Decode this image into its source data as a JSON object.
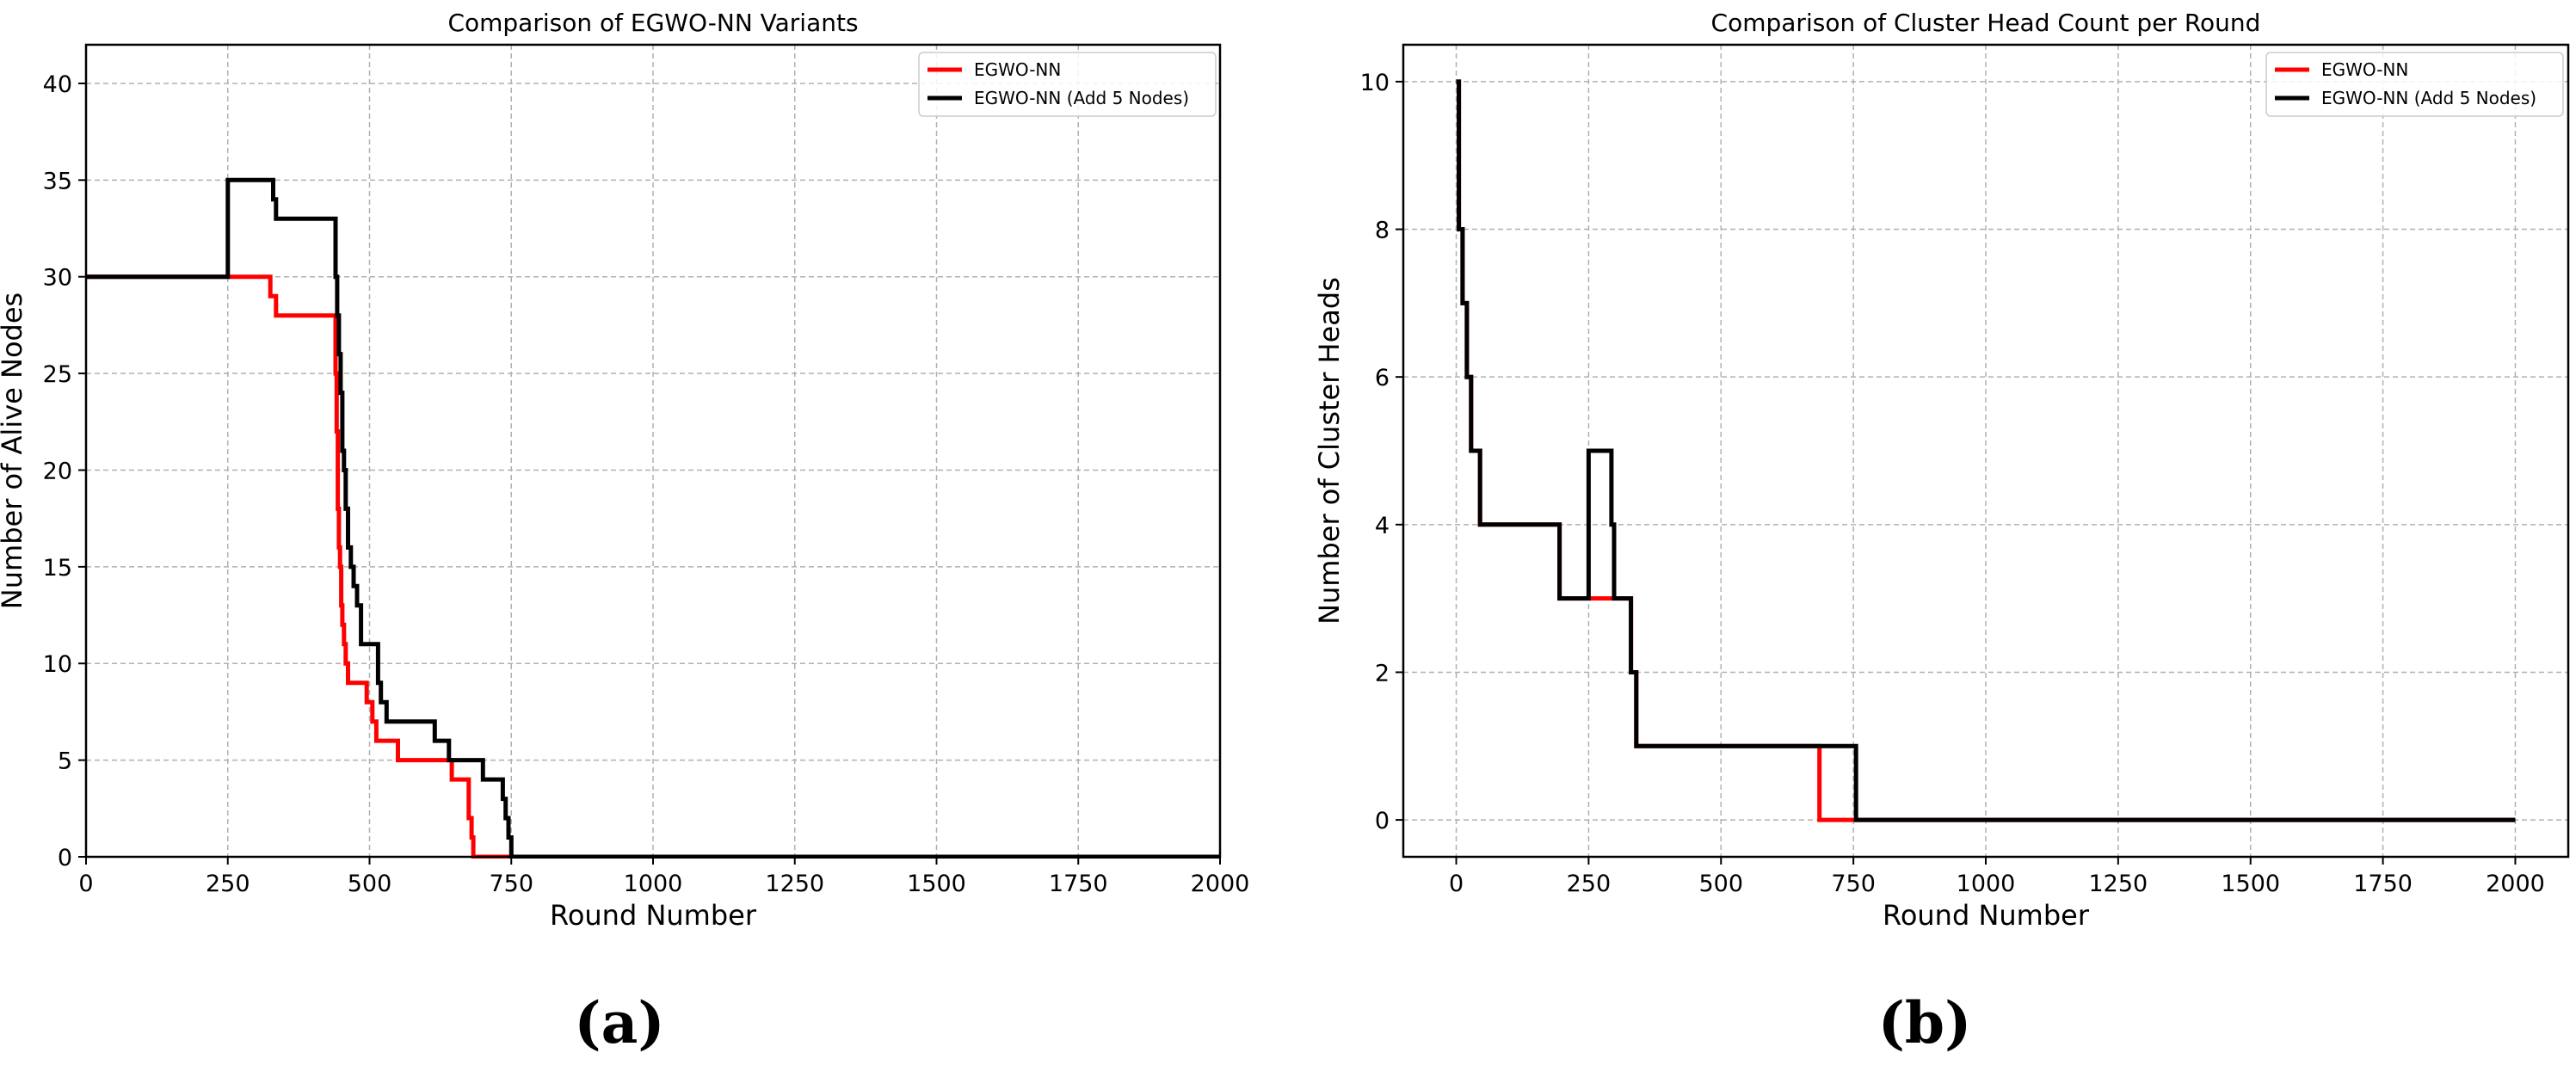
{
  "chart_data": [
    {
      "type": "line",
      "title": "Comparison of EGWO-NN Variants",
      "xlabel": "Round Number",
      "ylabel": "Number of Alive Nodes",
      "xlim": [
        0,
        2000
      ],
      "ylim": [
        0,
        42
      ],
      "xticks": [
        0,
        250,
        500,
        750,
        1000,
        1250,
        1500,
        1750,
        2000
      ],
      "yticks": [
        0,
        5,
        10,
        15,
        20,
        25,
        30,
        35,
        40
      ],
      "grid": true,
      "legend_position": "top-right",
      "panel_label": "(a)",
      "series": [
        {
          "name": "EGWO-NN",
          "color": "#ff0000",
          "x": [
            0,
            325,
            325,
            335,
            335,
            345,
            345,
            440,
            440,
            442,
            442,
            444,
            444,
            446,
            446,
            448,
            448,
            450,
            450,
            452,
            452,
            455,
            455,
            458,
            458,
            462,
            462,
            470,
            470,
            495,
            495,
            505,
            505,
            512,
            512,
            520,
            520,
            550,
            550,
            645,
            645,
            675,
            675,
            680,
            680,
            683,
            683,
            686,
            686,
            2000
          ],
          "y": [
            30,
            30,
            29,
            29,
            28,
            28,
            28,
            28,
            25,
            25,
            22,
            22,
            18,
            18,
            16,
            16,
            15,
            15,
            13,
            13,
            12,
            12,
            11,
            11,
            10,
            10,
            9,
            9,
            9,
            9,
            8,
            8,
            7,
            7,
            6,
            6,
            6,
            6,
            5,
            5,
            4,
            4,
            2,
            2,
            1,
            1,
            0,
            0,
            0,
            0
          ]
        },
        {
          "name": "EGWO-NN (Add 5 Nodes)",
          "color": "#000000",
          "x": [
            0,
            250,
            250,
            330,
            330,
            335,
            335,
            345,
            345,
            440,
            440,
            443,
            443,
            446,
            446,
            449,
            449,
            452,
            452,
            455,
            455,
            458,
            458,
            462,
            462,
            467,
            467,
            472,
            472,
            478,
            478,
            485,
            485,
            515,
            515,
            520,
            520,
            530,
            530,
            545,
            545,
            615,
            615,
            640,
            640,
            700,
            700,
            735,
            735,
            740,
            740,
            745,
            745,
            750,
            750,
            755,
            755,
            2000
          ],
          "y": [
            30,
            30,
            35,
            35,
            34,
            34,
            33,
            33,
            33,
            33,
            30,
            30,
            28,
            28,
            26,
            26,
            24,
            24,
            21,
            21,
            20,
            20,
            18,
            18,
            16,
            16,
            15,
            15,
            14,
            14,
            13,
            13,
            11,
            11,
            9,
            9,
            8,
            8,
            7,
            7,
            7,
            7,
            6,
            6,
            5,
            5,
            4,
            4,
            3,
            3,
            2,
            2,
            1,
            1,
            0,
            0,
            0,
            0
          ]
        }
      ]
    },
    {
      "type": "line",
      "title": "Comparison of Cluster Head Count per Round",
      "xlabel": "Round Number",
      "ylabel": "Number of Cluster Heads",
      "xlim": [
        -100,
        2100
      ],
      "ylim": [
        -0.5,
        10.5
      ],
      "xticks": [
        0,
        250,
        500,
        750,
        1000,
        1250,
        1500,
        1750,
        2000
      ],
      "yticks": [
        0,
        2,
        4,
        6,
        8,
        10
      ],
      "grid": true,
      "legend_position": "top-right",
      "panel_label": "(b)",
      "series": [
        {
          "name": "EGWO-NN",
          "color": "#ff0000",
          "x": [
            0,
            5,
            5,
            12,
            12,
            20,
            20,
            28,
            28,
            45,
            45,
            195,
            195,
            250,
            250,
            295,
            295,
            330,
            330,
            340,
            340,
            686,
            686,
            2000
          ],
          "y": [
            10,
            10,
            8,
            8,
            7,
            7,
            6,
            6,
            5,
            5,
            4,
            4,
            3,
            3,
            3,
            3,
            3,
            3,
            2,
            2,
            1,
            1,
            0,
            0
          ]
        },
        {
          "name": "EGWO-NN (Add 5 Nodes)",
          "color": "#000000",
          "x": [
            0,
            5,
            5,
            12,
            12,
            20,
            20,
            28,
            28,
            45,
            45,
            195,
            195,
            250,
            250,
            293,
            293,
            298,
            298,
            330,
            330,
            340,
            340,
            755,
            755,
            2000
          ],
          "y": [
            10,
            10,
            8,
            8,
            7,
            7,
            6,
            6,
            5,
            5,
            4,
            4,
            3,
            3,
            5,
            5,
            4,
            4,
            3,
            3,
            2,
            2,
            1,
            1,
            0,
            0
          ]
        }
      ]
    }
  ]
}
